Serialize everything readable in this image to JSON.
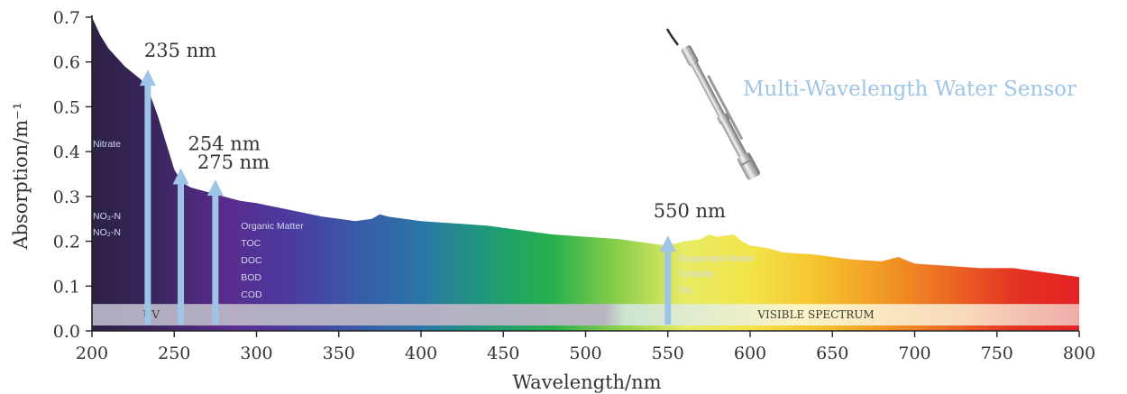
{
  "chart_data": {
    "type": "area",
    "title": "",
    "xlabel": "Wavelength/nm",
    "ylabel": "Absorption/m⁻¹",
    "xlim": [
      200,
      800
    ],
    "ylim": [
      0,
      0.7
    ],
    "x_ticks": [
      "200",
      "250",
      "300",
      "350",
      "400",
      "450",
      "500",
      "550",
      "600",
      "650",
      "700",
      "750",
      "800"
    ],
    "y_ticks": [
      "0.0",
      "0.1",
      "0.2",
      "0.3",
      "0.4",
      "0.5",
      "0.6",
      "0.7"
    ],
    "grid": false,
    "series": [
      {
        "x": [
          200,
          205,
          210,
          215,
          220,
          225,
          230,
          235,
          240,
          245,
          250,
          255,
          260,
          265,
          270,
          275,
          280,
          290,
          300,
          320,
          340,
          360,
          370,
          375,
          380,
          390,
          400,
          420,
          440,
          460,
          480,
          500,
          520,
          540,
          550,
          560,
          570,
          575,
          580,
          590,
          595,
          600,
          610,
          620,
          640,
          660,
          680,
          690,
          700,
          720,
          740,
          760,
          780,
          800
        ],
        "y": [
          0.7,
          0.66,
          0.63,
          0.61,
          0.59,
          0.575,
          0.56,
          0.53,
          0.48,
          0.42,
          0.36,
          0.33,
          0.32,
          0.315,
          0.31,
          0.305,
          0.3,
          0.29,
          0.285,
          0.27,
          0.255,
          0.245,
          0.25,
          0.26,
          0.255,
          0.25,
          0.245,
          0.24,
          0.235,
          0.225,
          0.215,
          0.21,
          0.205,
          0.195,
          0.19,
          0.2,
          0.205,
          0.215,
          0.21,
          0.215,
          0.2,
          0.19,
          0.185,
          0.175,
          0.17,
          0.16,
          0.155,
          0.165,
          0.15,
          0.145,
          0.14,
          0.14,
          0.13,
          0.12
        ]
      }
    ],
    "markers": [
      {
        "wavelength": 235,
        "label": "235 nm",
        "value": 0.575
      },
      {
        "wavelength": 254,
        "label": "254 nm",
        "value": 0.355
      },
      {
        "wavelength": 275,
        "label": "275 nm",
        "value": 0.33
      },
      {
        "wavelength": 550,
        "label": "550 nm",
        "value": 0.205
      }
    ],
    "bands": [
      {
        "label": "UV",
        "from": 200,
        "to": 390,
        "color": "#b9b5c8"
      },
      {
        "label": "VISIBLE SPECTRUM",
        "from": 390,
        "to": 800,
        "color": "#f6f2d8"
      }
    ],
    "annotations": {
      "nitrate": [
        "Nitrate",
        "NO₃-N",
        "NO₂-N"
      ],
      "organic": [
        "Organic Matter",
        "TOC",
        "DOC",
        "BOD",
        "COD"
      ],
      "suspended": [
        "Suspended Matter",
        "Turbidity",
        "Tss"
      ]
    },
    "sensor_title": "Multi-Wavelength Water Sensor",
    "colors": {
      "arrow": "#9ec4e6",
      "text": "#333333",
      "spectrum": [
        "#2d2144",
        "#3a2660",
        "#5a2b8c",
        "#4b3aa0",
        "#3a5aa8",
        "#2a76a8",
        "#1f9a78",
        "#26b04c",
        "#8ccf4a",
        "#e8ec64",
        "#f3e44a",
        "#f5c42e",
        "#f29a24",
        "#ec6a22",
        "#e43422",
        "#e42222"
      ]
    }
  }
}
